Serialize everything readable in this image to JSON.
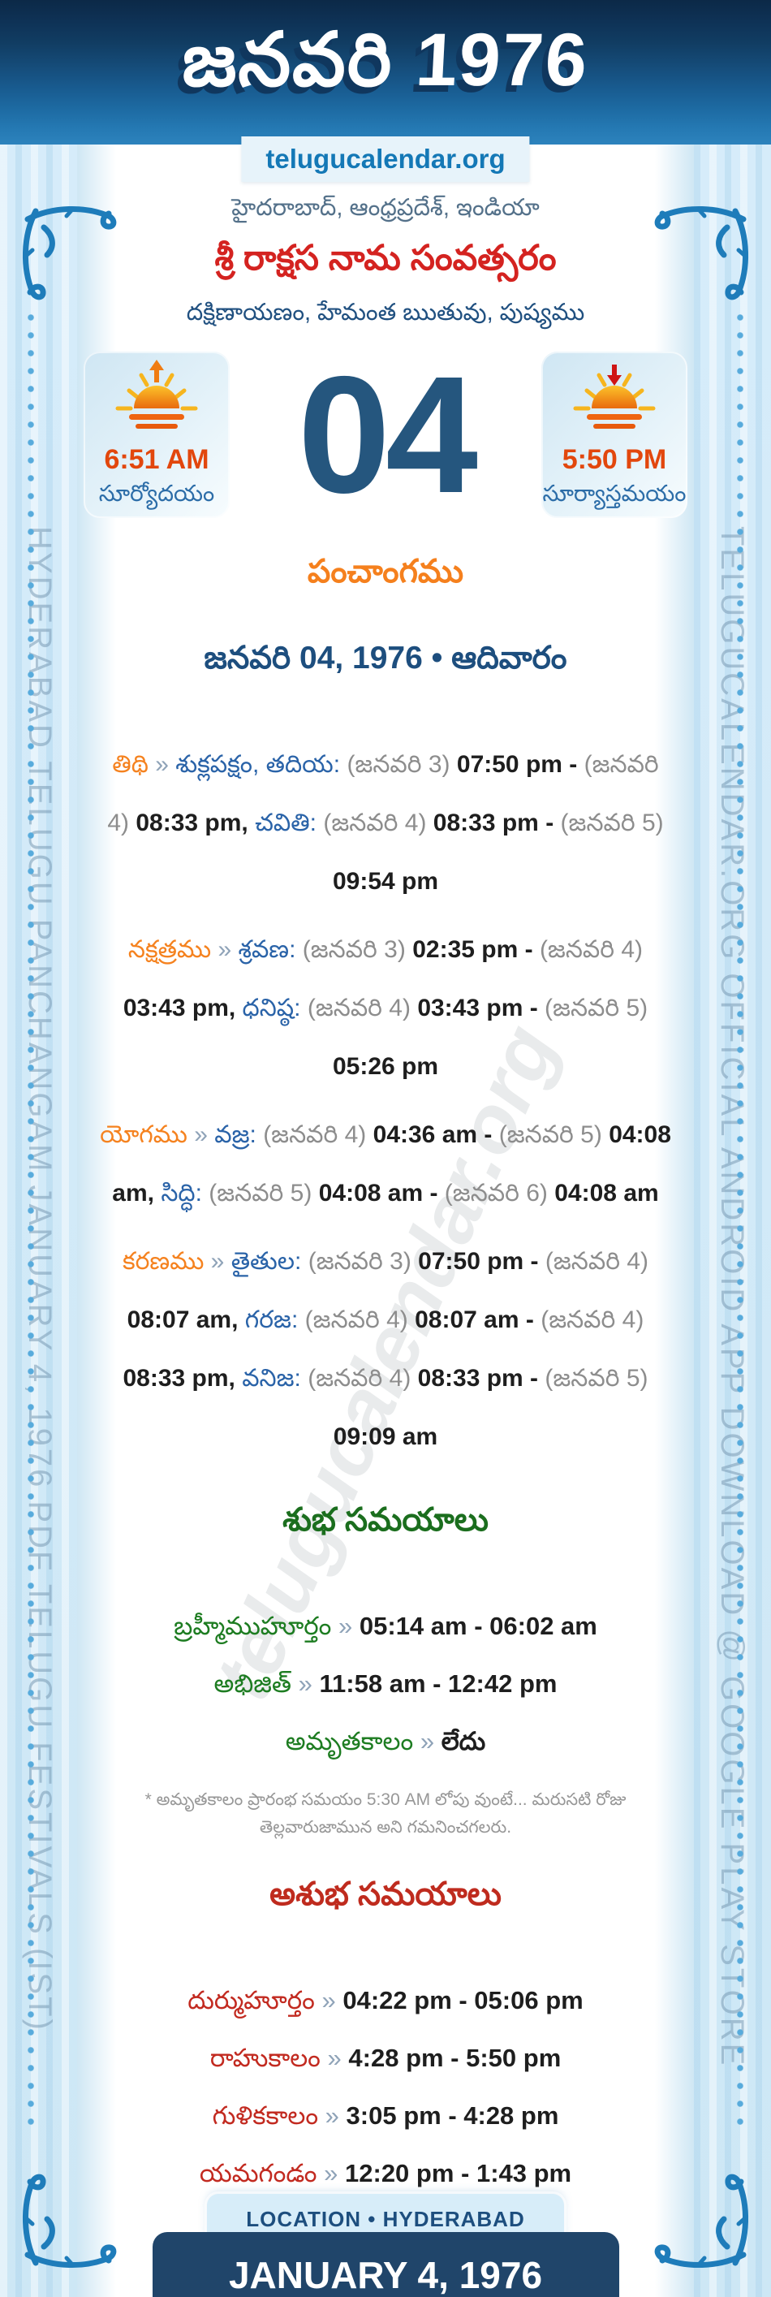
{
  "ui": {
    "separator": "»"
  },
  "header": {
    "title": "జనవరి 1976",
    "site": "telugucalendar.org"
  },
  "intro": {
    "region_line": "హైదరాబాద్, ఆంధ్రప్రదేశ్, ఇండియా",
    "samvatsara_line": "శ్రీ రాక్షస నామ సంవత్సరం",
    "ayana_line": "దక్షిణాయణం, హేమంత ఋతువు, పుష్యము"
  },
  "sun": {
    "sunrise_time": "6:51 AM",
    "sunrise_label": "సూర్యోదయం",
    "sunset_time": "5:50 PM",
    "sunset_label": "సూర్యాస్తమయం"
  },
  "day": {
    "number": "04"
  },
  "panchangam": {
    "heading": "పంచాంగము",
    "date_line": "జనవరి 04, 1976 • ఆదివారం",
    "rows": [
      {
        "name": "తిథి",
        "segments": [
          {
            "t": "తిథి",
            "c": "orange"
          },
          {
            "t": " » ",
            "c": "sep"
          },
          {
            "t": "శుక్లపక్షం, తదియ: ",
            "c": "blue"
          },
          {
            "t": "(జనవరి 3) ",
            "c": "ref"
          },
          {
            "t": "07:50 pm - ",
            "c": "dark"
          },
          {
            "t": "(జనవరి 4) ",
            "c": "ref"
          },
          {
            "t": "08:33 pm, ",
            "c": "dark"
          },
          {
            "t": "చవితి: ",
            "c": "blue"
          },
          {
            "t": "(జనవరి 4) ",
            "c": "ref"
          },
          {
            "t": "08:33 pm - ",
            "c": "dark"
          },
          {
            "t": "(జనవరి 5) ",
            "c": "ref"
          },
          {
            "t": "09:54 pm",
            "c": "dark"
          }
        ]
      },
      {
        "name": "నక్షత్రము",
        "segments": [
          {
            "t": "నక్షత్రము",
            "c": "orange"
          },
          {
            "t": " » ",
            "c": "sep"
          },
          {
            "t": "శ్రవణ: ",
            "c": "blue"
          },
          {
            "t": "(జనవరి 3) ",
            "c": "ref"
          },
          {
            "t": "02:35 pm - ",
            "c": "dark"
          },
          {
            "t": "(జనవరి 4) ",
            "c": "ref"
          },
          {
            "t": "03:43 pm, ",
            "c": "dark"
          },
          {
            "t": "ధనిష్ఠ: ",
            "c": "blue"
          },
          {
            "t": "(జనవరి 4) ",
            "c": "ref"
          },
          {
            "t": "03:43 pm - ",
            "c": "dark"
          },
          {
            "t": "(జనవరి 5) ",
            "c": "ref"
          },
          {
            "t": "05:26 pm",
            "c": "dark"
          }
        ]
      },
      {
        "name": "యోగము",
        "segments": [
          {
            "t": "యోగము",
            "c": "orange"
          },
          {
            "t": " » ",
            "c": "sep"
          },
          {
            "t": "వజ్ర: ",
            "c": "blue"
          },
          {
            "t": "(జనవరి 4) ",
            "c": "ref"
          },
          {
            "t": "04:36 am - ",
            "c": "dark"
          },
          {
            "t": "(జనవరి 5) ",
            "c": "ref"
          },
          {
            "t": "04:08 am, ",
            "c": "dark"
          },
          {
            "t": "సిద్ధి: ",
            "c": "blue"
          },
          {
            "t": "(జనవరి 5) ",
            "c": "ref"
          },
          {
            "t": "04:08 am - ",
            "c": "dark"
          },
          {
            "t": "(జనవరి 6) ",
            "c": "ref"
          },
          {
            "t": "04:08 am",
            "c": "dark"
          }
        ]
      },
      {
        "name": "కరణము",
        "segments": [
          {
            "t": "కరణము",
            "c": "orange"
          },
          {
            "t": " » ",
            "c": "sep"
          },
          {
            "t": "తైతుల: ",
            "c": "blue"
          },
          {
            "t": "(జనవరి 3) ",
            "c": "ref"
          },
          {
            "t": "07:50 pm - ",
            "c": "dark"
          },
          {
            "t": "(జనవరి 4) ",
            "c": "ref"
          },
          {
            "t": "08:07 am, ",
            "c": "dark"
          },
          {
            "t": "గరజ: ",
            "c": "blue"
          },
          {
            "t": "(జనవరి 4) ",
            "c": "ref"
          },
          {
            "t": "08:07 am - ",
            "c": "dark"
          },
          {
            "t": "(జనవరి 4) ",
            "c": "ref"
          },
          {
            "t": "08:33 pm, ",
            "c": "dark"
          },
          {
            "t": "వనిజ: ",
            "c": "blue"
          },
          {
            "t": "(జనవరి 4) ",
            "c": "ref"
          },
          {
            "t": "08:33 pm - ",
            "c": "dark"
          },
          {
            "t": "(జనవరి 5) ",
            "c": "ref"
          },
          {
            "t": "09:09 am",
            "c": "dark"
          }
        ]
      }
    ]
  },
  "shubha": {
    "heading": "శుభ సమయాలు",
    "rows": [
      {
        "label": "బ్రహ్మీముహూర్తం",
        "value": "05:14 am - 06:02 am"
      },
      {
        "label": "అభిజిత్",
        "value": "11:58 am - 12:42 pm"
      },
      {
        "label": "అమృతకాలం",
        "value": "లేదు"
      }
    ],
    "note": "* అమృతకాలం ప్రారంభ సమయం 5:30 AM లోపు వుంటే... మరుసటి రోజు తెల్లవారుజామున అని గమనించగలరు."
  },
  "ashubha": {
    "heading": "అశుభ సమయాలు",
    "rows": [
      {
        "label": "దుర్ముహూర్తం",
        "value": "04:22 pm - 05:06 pm"
      },
      {
        "label": "రాహుకాలం",
        "value": "4:28 pm - 5:50 pm"
      },
      {
        "label": "గుళికకాలం",
        "value": "3:05 pm - 4:28 pm"
      },
      {
        "label": "యమగండం",
        "value": "12:20 pm - 1:43 pm"
      }
    ]
  },
  "footer": {
    "location_line": "LOCATION • HYDERABAD",
    "date_box": "JANUARY 4, 1976"
  },
  "watermarks": {
    "left": "HYDERABAD TELUGU PANCHANGAM JANUARY 4, 1976 PDF TELUGU FESTIVALS (IST)",
    "right": "TELUGUCALENDAR.ORG OFFICIAL ANDROID APP DOWNLOAD @ GOOGLE PLAY STORE",
    "center": "telugucalendar.org"
  },
  "colors": {
    "header_navy": "#0c2947",
    "accent_orange": "#f5821f",
    "accent_blue": "#2a63a8",
    "accent_red": "#c22a20",
    "accent_green": "#1d7c21",
    "day_navy": "#25567e",
    "banner_navy": "#20456a"
  }
}
